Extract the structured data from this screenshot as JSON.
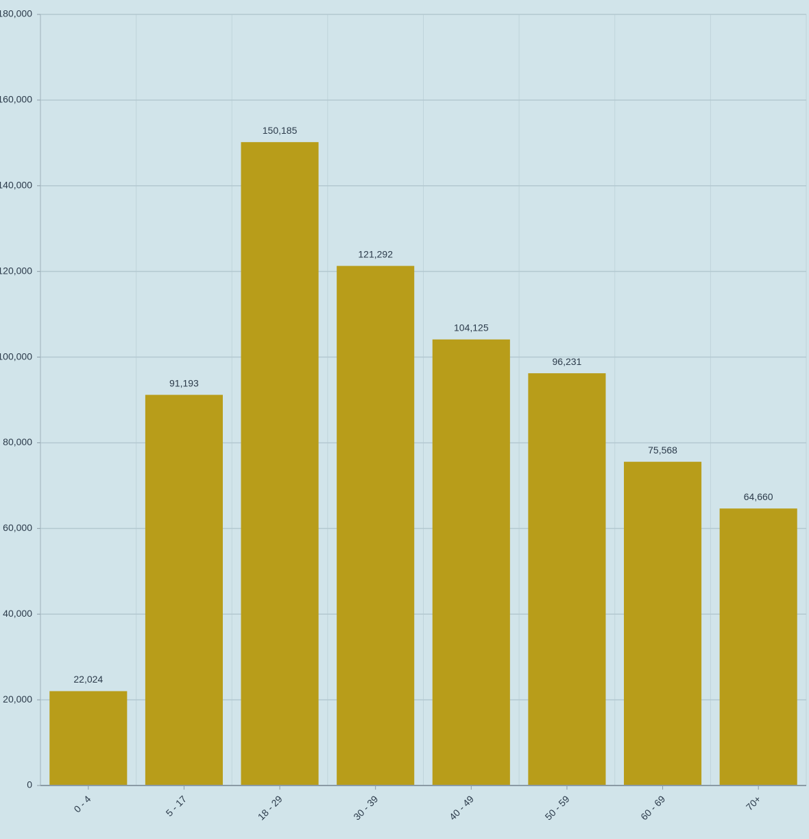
{
  "chart_data": {
    "type": "bar",
    "categories": [
      "0 - 4",
      "5 - 17",
      "18 - 29",
      "30 - 39",
      "40 - 49",
      "50 - 59",
      "60 - 69",
      "70+"
    ],
    "values": [
      22024,
      91193,
      150185,
      121292,
      104125,
      96231,
      75568,
      64660
    ],
    "value_labels": [
      "22,024",
      "91,193",
      "150,185",
      "121,292",
      "104,125",
      "96,231",
      "75,568",
      "64,660"
    ],
    "color": "#b89d1a",
    "ylim": [
      0,
      180000
    ],
    "yticks": [
      0,
      {
        "value": 20000,
        "label": "20,000"
      },
      {
        "value": 40000,
        "label": "40,000"
      },
      {
        "value": 60000,
        "label": "60,000"
      },
      {
        "value": 80000,
        "label": "80,000"
      },
      {
        "value": 100000,
        "label": "100,000"
      },
      {
        "value": 120000,
        "label": "120,000"
      },
      {
        "value": 140000,
        "label": "140,000"
      },
      {
        "value": 160000,
        "label": "160,000"
      },
      {
        "value": 180000,
        "label": "180,000"
      }
    ],
    "grid": true
  }
}
